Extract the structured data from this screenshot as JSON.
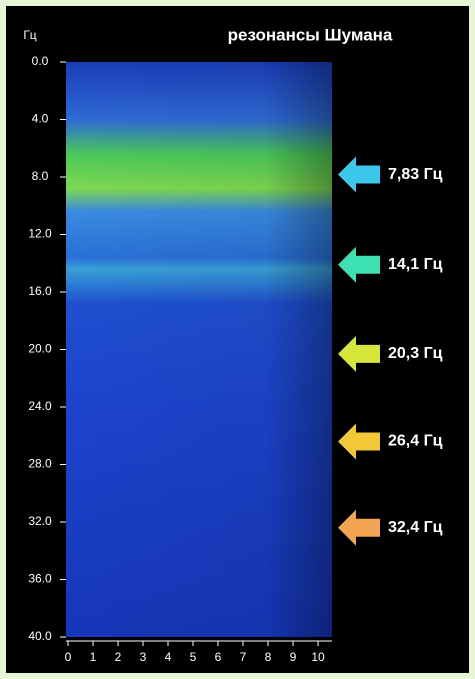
{
  "chart_data": {
    "type": "spectrogram",
    "title": "резонансы Шумана",
    "y_label": "Гц",
    "ylim": [
      0,
      40
    ],
    "yticks": [
      {
        "value": 0,
        "label": "0.0"
      },
      {
        "value": 4,
        "label": "4.0"
      },
      {
        "value": 8,
        "label": "8.0"
      },
      {
        "value": 12,
        "label": "12.0"
      },
      {
        "value": 16,
        "label": "16.0"
      },
      {
        "value": 20,
        "label": "20.0"
      },
      {
        "value": 24,
        "label": "24.0"
      },
      {
        "value": 28,
        "label": "28.0"
      },
      {
        "value": 32,
        "label": "32.0"
      },
      {
        "value": 36,
        "label": "36.0"
      },
      {
        "value": 40,
        "label": "40.0"
      }
    ],
    "xlim": [
      0,
      10
    ],
    "xticks": [
      0,
      1,
      2,
      3,
      4,
      5,
      6,
      7,
      8,
      9,
      10
    ],
    "annotations": [
      {
        "value": 7.83,
        "label": "7,83 Гц",
        "color": "#3cc8ea"
      },
      {
        "value": 14.1,
        "label": "14,1 Гц",
        "color": "#3de0b0"
      },
      {
        "value": 20.3,
        "label": "20,3 Гц",
        "color": "#d6e63a"
      },
      {
        "value": 26.4,
        "label": "26,4 Гц",
        "color": "#f2c838"
      },
      {
        "value": 32.4,
        "label": "32,4 Гц",
        "color": "#f2a452"
      }
    ]
  }
}
